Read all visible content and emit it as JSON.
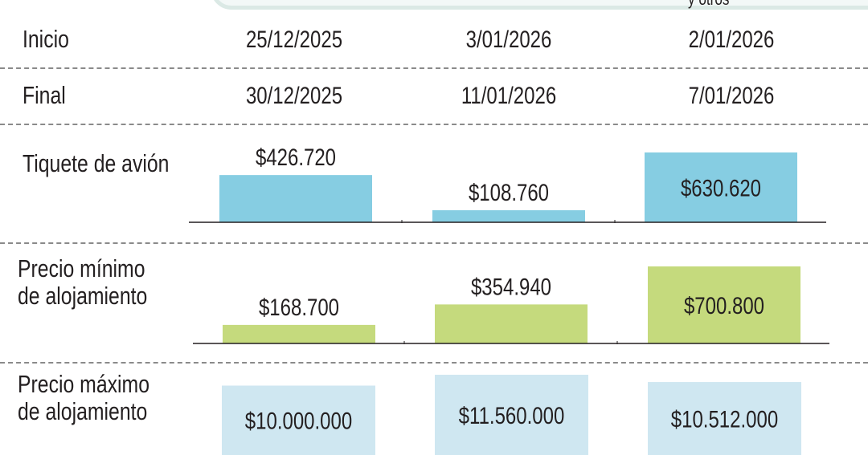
{
  "header_fragment": "y otros",
  "rows": {
    "inicio": {
      "label": "Inicio",
      "values": [
        "25/12/2025",
        "3/01/2026",
        "2/01/2026"
      ]
    },
    "final": {
      "label": "Final",
      "values": [
        "30/12/2025",
        "11/01/2026",
        "7/01/2026"
      ]
    }
  },
  "colors": {
    "flight": "#86cde2",
    "min_lodging": "#c5da7d",
    "max_lodging": "#cfe7f1",
    "separator": "#8a8a8a"
  },
  "chart_data": [
    {
      "type": "bar",
      "id": "tiquete",
      "title": "Tiquete de avión",
      "categories": [
        "25/12/2025 - 30/12/2025",
        "3/01/2026 - 11/01/2026",
        "2/01/2026 - 7/01/2026"
      ],
      "values": [
        426720,
        108760,
        630620
      ],
      "value_labels": [
        "$426.720",
        "$108.760",
        "$630.620"
      ],
      "label_inside": [
        false,
        false,
        true
      ],
      "ylim": [
        0,
        630620
      ],
      "baseline": true
    },
    {
      "type": "bar",
      "id": "min",
      "title": "Precio mínimo de alojamiento",
      "title_lines": [
        "Precio mínimo",
        "de alojamiento"
      ],
      "categories": [
        "25/12/2025 - 30/12/2025",
        "3/01/2026 - 11/01/2026",
        "2/01/2026 - 7/01/2026"
      ],
      "values": [
        168700,
        354940,
        700800
      ],
      "value_labels": [
        "$168.700",
        "$354.940",
        "$700.800"
      ],
      "label_inside": [
        false,
        false,
        true
      ],
      "ylim": [
        0,
        700800
      ],
      "baseline": true
    },
    {
      "type": "bar",
      "id": "max",
      "title": "Precio máximo de alojamiento",
      "title_lines": [
        "Precio máximo",
        "de alojamiento"
      ],
      "categories": [
        "25/12/2025 - 30/12/2025",
        "3/01/2026 - 11/01/2026",
        "2/01/2026 - 7/01/2026"
      ],
      "values": [
        10000000,
        11560000,
        10512000
      ],
      "value_labels": [
        "$10.000.000",
        "$11.560.000",
        "$10.512.000"
      ],
      "label_inside": [
        true,
        true,
        true
      ],
      "ylim": [
        0,
        11560000
      ],
      "baseline": false
    }
  ]
}
